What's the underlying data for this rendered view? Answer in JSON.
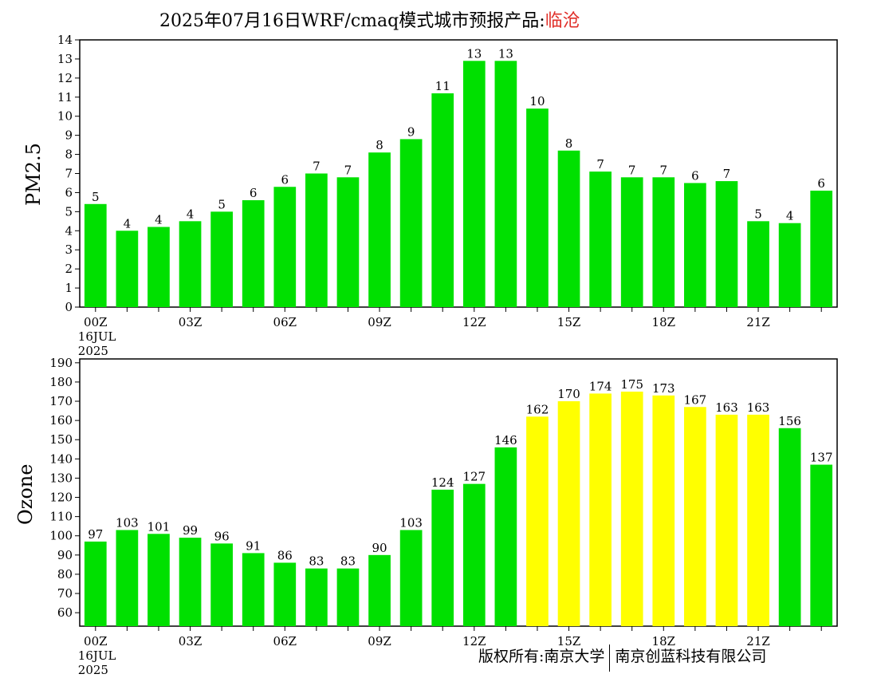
{
  "title": {
    "main": "2025年07月16日WRF/cmaq模式城市预报产品:",
    "city": "临沧"
  },
  "colors": {
    "green": "#00e000",
    "yellow": "#ffff00",
    "title_city": "#e0302a"
  },
  "footer": {
    "left": "版权所有:南京大学",
    "right": "南京创蓝科技有限公司"
  },
  "chart_data": [
    {
      "type": "bar",
      "ylabel": "PM2.5",
      "ylim": [
        0,
        14
      ],
      "yticks": [
        0,
        1,
        2,
        3,
        4,
        5,
        6,
        7,
        8,
        9,
        10,
        11,
        12,
        13,
        14
      ],
      "categories": [
        "00Z",
        "01Z",
        "02Z",
        "03Z",
        "04Z",
        "05Z",
        "06Z",
        "07Z",
        "08Z",
        "09Z",
        "10Z",
        "11Z",
        "12Z",
        "13Z",
        "14Z",
        "15Z",
        "16Z",
        "17Z",
        "18Z",
        "19Z",
        "20Z",
        "21Z",
        "22Z",
        "23Z"
      ],
      "xtick_labels": [
        "00Z",
        "",
        "",
        "03Z",
        "",
        "",
        "06Z",
        "",
        "",
        "09Z",
        "",
        "",
        "12Z",
        "",
        "",
        "15Z",
        "",
        "",
        "18Z",
        "",
        "",
        "21Z",
        "",
        ""
      ],
      "date_lines": [
        "16JUL",
        "2025"
      ],
      "values": [
        5.4,
        4.0,
        4.2,
        4.5,
        5.0,
        5.6,
        6.3,
        7.0,
        6.8,
        8.1,
        8.8,
        11.2,
        12.9,
        12.9,
        10.4,
        8.2,
        7.1,
        6.8,
        6.8,
        6.5,
        6.6,
        4.5,
        4.4,
        6.1
      ],
      "labels": [
        "5",
        "4",
        "4",
        "4",
        "5",
        "6",
        "6",
        "7",
        "7",
        "8",
        "9",
        "11",
        "13",
        "13",
        "10",
        "8",
        "7",
        "7",
        "7",
        "6",
        "7",
        "5",
        "4",
        "6"
      ],
      "bar_colors": [
        "green",
        "green",
        "green",
        "green",
        "green",
        "green",
        "green",
        "green",
        "green",
        "green",
        "green",
        "green",
        "green",
        "green",
        "green",
        "green",
        "green",
        "green",
        "green",
        "green",
        "green",
        "green",
        "green",
        "green"
      ]
    },
    {
      "type": "bar",
      "ylabel": "Ozone",
      "ylim": [
        53,
        192
      ],
      "yticks": [
        60,
        70,
        80,
        90,
        100,
        110,
        120,
        130,
        140,
        150,
        160,
        170,
        180,
        190
      ],
      "categories": [
        "00Z",
        "01Z",
        "02Z",
        "03Z",
        "04Z",
        "05Z",
        "06Z",
        "07Z",
        "08Z",
        "09Z",
        "10Z",
        "11Z",
        "12Z",
        "13Z",
        "14Z",
        "15Z",
        "16Z",
        "17Z",
        "18Z",
        "19Z",
        "20Z",
        "21Z",
        "22Z",
        "23Z"
      ],
      "xtick_labels": [
        "00Z",
        "",
        "",
        "03Z",
        "",
        "",
        "06Z",
        "",
        "",
        "09Z",
        "",
        "",
        "12Z",
        "",
        "",
        "15Z",
        "",
        "",
        "18Z",
        "",
        "",
        "21Z",
        "",
        ""
      ],
      "date_lines": [
        "16JUL",
        "2025"
      ],
      "values": [
        97,
        103,
        101,
        99,
        96,
        91,
        86,
        83,
        83,
        90,
        103,
        124,
        127,
        146,
        162,
        170,
        174,
        175,
        173,
        167,
        163,
        163,
        156,
        137
      ],
      "labels": [
        "97",
        "103",
        "101",
        "99",
        "96",
        "91",
        "86",
        "83",
        "83",
        "90",
        "103",
        "124",
        "127",
        "146",
        "162",
        "170",
        "174",
        "175",
        "173",
        "167",
        "163",
        "163",
        "156",
        "137"
      ],
      "bar_colors": [
        "green",
        "green",
        "green",
        "green",
        "green",
        "green",
        "green",
        "green",
        "green",
        "green",
        "green",
        "green",
        "green",
        "green",
        "yellow",
        "yellow",
        "yellow",
        "yellow",
        "yellow",
        "yellow",
        "yellow",
        "yellow",
        "green",
        "green"
      ]
    }
  ]
}
